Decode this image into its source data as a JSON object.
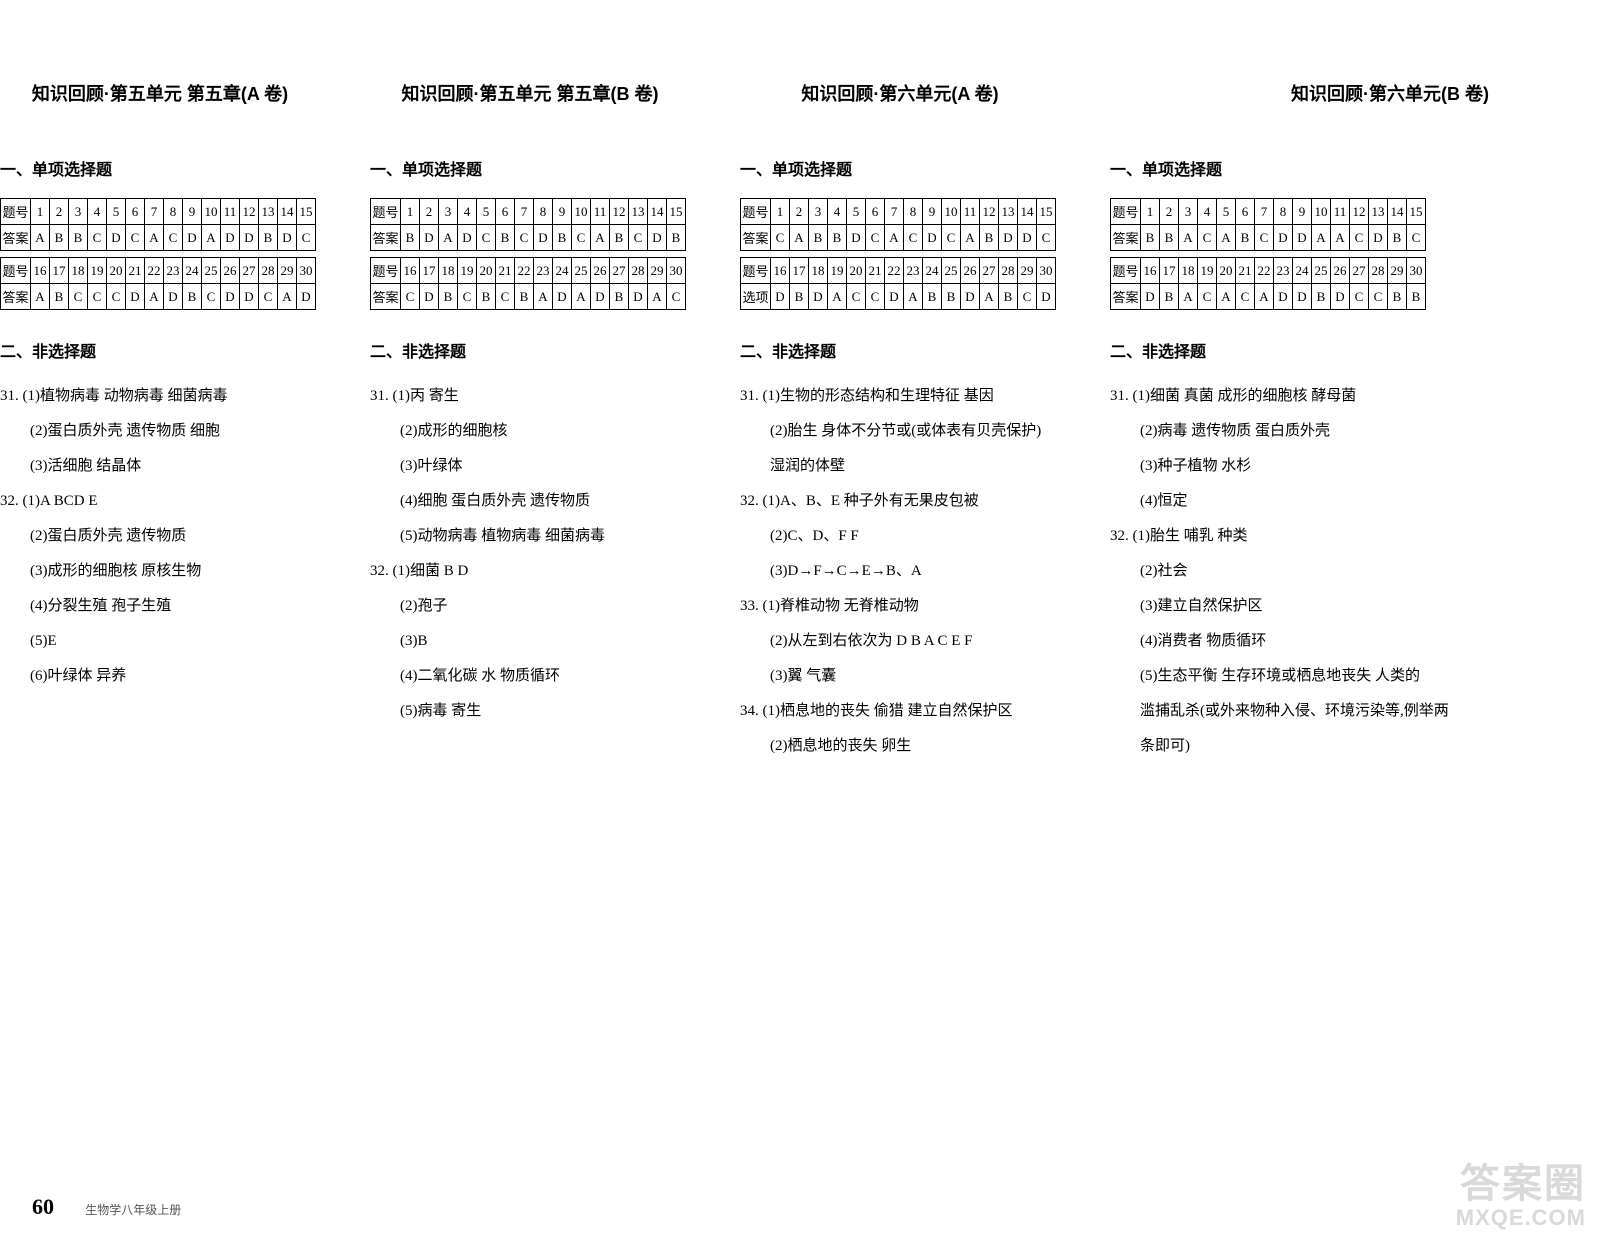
{
  "columns": [
    {
      "title": "知识回顾·第五单元 第五章(A 卷)",
      "mc_head": "一、单项选择题",
      "table_q_label": "题号",
      "table_a_label": "答案",
      "nums1": [
        "1",
        "2",
        "3",
        "4",
        "5",
        "6",
        "7",
        "8",
        "9",
        "10",
        "11",
        "12",
        "13",
        "14",
        "15"
      ],
      "ans1": [
        "A",
        "B",
        "B",
        "C",
        "D",
        "C",
        "A",
        "C",
        "D",
        "A",
        "D",
        "D",
        "B",
        "D",
        "C"
      ],
      "nums2": [
        "16",
        "17",
        "18",
        "19",
        "20",
        "21",
        "22",
        "23",
        "24",
        "25",
        "26",
        "27",
        "28",
        "29",
        "30"
      ],
      "ans2": [
        "A",
        "B",
        "C",
        "C",
        "C",
        "D",
        "A",
        "D",
        "B",
        "C",
        "D",
        "D",
        "C",
        "A",
        "D"
      ],
      "frq_head": "二、非选择题",
      "frq": [
        {
          "t": "31. (1)植物病毒 动物病毒 细菌病毒",
          "indent": false
        },
        {
          "t": "(2)蛋白质外壳 遗传物质 细胞",
          "indent": true
        },
        {
          "t": "(3)活细胞 结晶体",
          "indent": true
        },
        {
          "t": "32. (1)A BCD E",
          "indent": false
        },
        {
          "t": "(2)蛋白质外壳 遗传物质",
          "indent": true
        },
        {
          "t": "(3)成形的细胞核 原核生物",
          "indent": true
        },
        {
          "t": "(4)分裂生殖 孢子生殖",
          "indent": true
        },
        {
          "t": "(5)E",
          "indent": true
        },
        {
          "t": "(6)叶绿体 异养",
          "indent": true
        }
      ]
    },
    {
      "title": "知识回顾·第五单元 第五章(B 卷)",
      "mc_head": "一、单项选择题",
      "table_q_label": "题号",
      "table_a_label": "答案",
      "nums1": [
        "1",
        "2",
        "3",
        "4",
        "5",
        "6",
        "7",
        "8",
        "9",
        "10",
        "11",
        "12",
        "13",
        "14",
        "15"
      ],
      "ans1": [
        "B",
        "D",
        "A",
        "D",
        "C",
        "B",
        "C",
        "D",
        "B",
        "C",
        "A",
        "B",
        "C",
        "D",
        "B"
      ],
      "nums2": [
        "16",
        "17",
        "18",
        "19",
        "20",
        "21",
        "22",
        "23",
        "24",
        "25",
        "26",
        "27",
        "28",
        "29",
        "30"
      ],
      "ans2": [
        "C",
        "D",
        "B",
        "C",
        "B",
        "C",
        "B",
        "A",
        "D",
        "A",
        "D",
        "B",
        "D",
        "A",
        "C"
      ],
      "frq_head": "二、非选择题",
      "frq": [
        {
          "t": "31. (1)丙 寄生",
          "indent": false
        },
        {
          "t": "(2)成形的细胞核",
          "indent": true
        },
        {
          "t": "(3)叶绿体",
          "indent": true
        },
        {
          "t": "(4)细胞 蛋白质外壳 遗传物质",
          "indent": true
        },
        {
          "t": "(5)动物病毒 植物病毒 细菌病毒",
          "indent": true
        },
        {
          "t": "32. (1)细菌 B D",
          "indent": false
        },
        {
          "t": "(2)孢子",
          "indent": true
        },
        {
          "t": "(3)B",
          "indent": true
        },
        {
          "t": "(4)二氧化碳 水 物质循环",
          "indent": true
        },
        {
          "t": "(5)病毒 寄生",
          "indent": true
        }
      ]
    },
    {
      "title": "知识回顾·第六单元(A 卷)",
      "mc_head": "一、单项选择题",
      "table_q_label": "题号",
      "table_a_label": "答案",
      "table_a_label2": "选项",
      "nums1": [
        "1",
        "2",
        "3",
        "4",
        "5",
        "6",
        "7",
        "8",
        "9",
        "10",
        "11",
        "12",
        "13",
        "14",
        "15"
      ],
      "ans1": [
        "C",
        "A",
        "B",
        "B",
        "D",
        "C",
        "A",
        "C",
        "D",
        "C",
        "A",
        "B",
        "D",
        "D",
        "C"
      ],
      "nums2": [
        "16",
        "17",
        "18",
        "19",
        "20",
        "21",
        "22",
        "23",
        "24",
        "25",
        "26",
        "27",
        "28",
        "29",
        "30"
      ],
      "ans2": [
        "D",
        "B",
        "D",
        "A",
        "C",
        "C",
        "D",
        "A",
        "B",
        "B",
        "D",
        "A",
        "B",
        "C",
        "D"
      ],
      "frq_head": "二、非选择题",
      "frq": [
        {
          "t": "31. (1)生物的形态结构和生理特征 基因",
          "indent": false
        },
        {
          "t": "(2)胎生 身体不分节或(或体表有贝壳保护)",
          "indent": true
        },
        {
          "t": "湿润的体壁",
          "indent": true
        },
        {
          "t": "32. (1)A、B、E 种子外有无果皮包被",
          "indent": false
        },
        {
          "t": "(2)C、D、F F",
          "indent": true
        },
        {
          "t": "(3)D→F→C→E→B、A",
          "indent": true
        },
        {
          "t": "33. (1)脊椎动物 无脊椎动物",
          "indent": false
        },
        {
          "t": "(2)从左到右依次为 D B A C E F",
          "indent": true
        },
        {
          "t": "(3)翼 气囊",
          "indent": true
        },
        {
          "t": "34. (1)栖息地的丧失 偷猎 建立自然保护区",
          "indent": false
        },
        {
          "t": "(2)栖息地的丧失 卵生",
          "indent": true
        }
      ]
    },
    {
      "title": "知识回顾·第六单元(B 卷)",
      "mc_head": "一、单项选择题",
      "table_q_label": "题号",
      "table_a_label": "答案",
      "nums1": [
        "1",
        "2",
        "3",
        "4",
        "5",
        "6",
        "7",
        "8",
        "9",
        "10",
        "11",
        "12",
        "13",
        "14",
        "15"
      ],
      "ans1": [
        "B",
        "B",
        "A",
        "C",
        "A",
        "B",
        "C",
        "D",
        "D",
        "A",
        "A",
        "C",
        "D",
        "B",
        "C"
      ],
      "nums2": [
        "16",
        "17",
        "18",
        "19",
        "20",
        "21",
        "22",
        "23",
        "24",
        "25",
        "26",
        "27",
        "28",
        "29",
        "30"
      ],
      "ans2": [
        "D",
        "B",
        "A",
        "C",
        "A",
        "C",
        "A",
        "D",
        "D",
        "B",
        "D",
        "C",
        "C",
        "B",
        "B"
      ],
      "frq_head": "二、非选择题",
      "frq": [
        {
          "t": "31. (1)细菌 真菌 成形的细胞核 酵母菌",
          "indent": false
        },
        {
          "t": "(2)病毒 遗传物质 蛋白质外壳",
          "indent": true
        },
        {
          "t": "(3)种子植物 水杉",
          "indent": true
        },
        {
          "t": "(4)恒定",
          "indent": true
        },
        {
          "t": "32. (1)胎生 哺乳 种类",
          "indent": false
        },
        {
          "t": "(2)社会",
          "indent": true
        },
        {
          "t": "(3)建立自然保护区",
          "indent": true
        },
        {
          "t": "(4)消费者 物质循环",
          "indent": true
        },
        {
          "t": "(5)生态平衡 生存环境或栖息地丧失 人类的",
          "indent": true
        },
        {
          "t": "滥捕乱杀(或外来物种入侵、环境污染等,例举两",
          "indent": true
        },
        {
          "t": "条即可)",
          "indent": true
        }
      ]
    }
  ],
  "footer": {
    "page": "60",
    "label": "生物学八年级上册"
  },
  "watermark": {
    "l1": "答案圈",
    "l2": "MXQE.COM"
  }
}
